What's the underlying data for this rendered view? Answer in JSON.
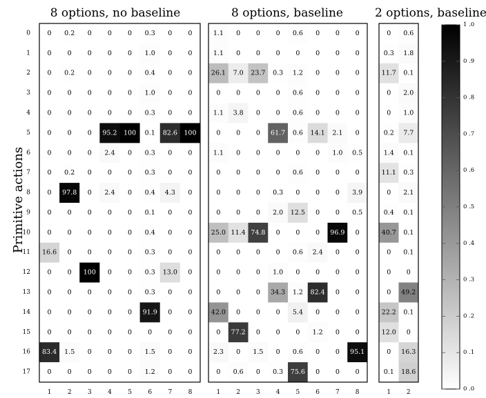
{
  "ylabel": "Primitive actions",
  "chart_data": [
    {
      "type": "heatmap",
      "title": "8 options, no baseline",
      "xticks": [
        "1",
        "2",
        "3",
        "4",
        "5",
        "6",
        "7",
        "8"
      ],
      "yticks": [
        "0",
        "1",
        "2",
        "3",
        "4",
        "5",
        "6",
        "7",
        "8",
        "9",
        "10",
        "11",
        "12",
        "13",
        "14",
        "15",
        "16",
        "17"
      ],
      "rows": [
        [
          "0",
          "0.2",
          "0",
          "0",
          "0",
          "0.3",
          "0",
          "0"
        ],
        [
          "0",
          "0",
          "0",
          "0",
          "0",
          "1.0",
          "0",
          "0"
        ],
        [
          "0",
          "0.2",
          "0",
          "0",
          "0",
          "0.4",
          "0",
          "0"
        ],
        [
          "0",
          "0",
          "0",
          "0",
          "0",
          "1.0",
          "0",
          "0"
        ],
        [
          "0",
          "0",
          "0",
          "0",
          "0",
          "0.3",
          "0",
          "0"
        ],
        [
          "0",
          "0",
          "0",
          "95.2",
          "100",
          "0.1",
          "82.6",
          "100"
        ],
        [
          "0",
          "0",
          "0",
          "2.4",
          "0",
          "0.3",
          "0",
          "0"
        ],
        [
          "0",
          "0.2",
          "0",
          "0",
          "0",
          "0.3",
          "0",
          "0"
        ],
        [
          "0",
          "97.8",
          "0",
          "2.4",
          "0",
          "0.4",
          "4.3",
          "0"
        ],
        [
          "0",
          "0",
          "0",
          "0",
          "0",
          "0.1",
          "0",
          "0"
        ],
        [
          "0",
          "0",
          "0",
          "0",
          "0",
          "0.4",
          "0",
          "0"
        ],
        [
          "16.6",
          "0",
          "0",
          "0",
          "0",
          "0.3",
          "0",
          "0"
        ],
        [
          "0",
          "0",
          "100",
          "0",
          "0",
          "0.3",
          "13.0",
          "0"
        ],
        [
          "0",
          "0",
          "0",
          "0",
          "0",
          "0.3",
          "0",
          "0"
        ],
        [
          "0",
          "0",
          "0",
          "0",
          "0",
          "91.9",
          "0",
          "0"
        ],
        [
          "0",
          "0",
          "0",
          "0",
          "0",
          "0",
          "0",
          "0"
        ],
        [
          "83.4",
          "1.5",
          "0",
          "0",
          "0",
          "1.5",
          "0",
          "0"
        ],
        [
          "0",
          "0",
          "0",
          "0",
          "0",
          "1.2",
          "0",
          "0"
        ]
      ]
    },
    {
      "type": "heatmap",
      "title": "8 options, baseline",
      "xticks": [
        "1",
        "2",
        "3",
        "4",
        "5",
        "6",
        "7",
        "8"
      ],
      "yticks": [],
      "rows": [
        [
          "1.1",
          "0",
          "0",
          "0",
          "0.6",
          "0",
          "0",
          "0"
        ],
        [
          "1.1",
          "0",
          "0",
          "0",
          "0",
          "0",
          "0",
          "0"
        ],
        [
          "26.1",
          "7.0",
          "23.7",
          "0.3",
          "1.2",
          "0",
          "0",
          "0"
        ],
        [
          "0",
          "0",
          "0",
          "0",
          "0.6",
          "0",
          "0",
          "0"
        ],
        [
          "1.1",
          "3.8",
          "0",
          "0",
          "0.6",
          "0",
          "0",
          "0"
        ],
        [
          "0",
          "0",
          "0",
          "61.7",
          "0.6",
          "14.1",
          "2.1",
          "0"
        ],
        [
          "1.1",
          "0",
          "0",
          "0",
          "0",
          "0",
          "1.0",
          "0.5"
        ],
        [
          "0",
          "0",
          "0",
          "0",
          "0.6",
          "0",
          "0",
          "0"
        ],
        [
          "0",
          "0",
          "0",
          "0.3",
          "0",
          "0",
          "0",
          "3.9"
        ],
        [
          "0",
          "0",
          "0",
          "2.0",
          "12.5",
          "0",
          "0",
          "0.5"
        ],
        [
          "25.0",
          "11.4",
          "74.8",
          "0",
          "0",
          "0",
          "96.9",
          "0"
        ],
        [
          "0",
          "0",
          "0",
          "0",
          "0.6",
          "2.4",
          "0",
          "0"
        ],
        [
          "0",
          "0",
          "0",
          "1.0",
          "0",
          "0",
          "0",
          "0"
        ],
        [
          "0",
          "0",
          "0",
          "34.3",
          "1.2",
          "82.4",
          "0",
          "0"
        ],
        [
          "42.0",
          "0",
          "0",
          "0",
          "5.4",
          "0",
          "0",
          "0"
        ],
        [
          "0",
          "77.2",
          "0",
          "0",
          "0",
          "1.2",
          "0",
          "0"
        ],
        [
          "2.3",
          "0",
          "1.5",
          "0",
          "0.6",
          "0",
          "0",
          "95.1"
        ],
        [
          "0",
          "0.6",
          "0",
          "0.3",
          "75.6",
          "0",
          "0",
          "0"
        ]
      ]
    },
    {
      "type": "heatmap",
      "title": "2 options, baseline",
      "xticks": [
        "1",
        "2"
      ],
      "yticks": [],
      "rows": [
        [
          "0",
          "0.6"
        ],
        [
          "0.3",
          "1.8"
        ],
        [
          "11.7",
          "0.1"
        ],
        [
          "0",
          "2.0"
        ],
        [
          "0",
          "1.0"
        ],
        [
          "0.2",
          "7.7"
        ],
        [
          "1.4",
          "0.1"
        ],
        [
          "11.1",
          "0.3"
        ],
        [
          "0",
          "2.1"
        ],
        [
          "0.4",
          "0.1"
        ],
        [
          "40.7",
          "0.1"
        ],
        [
          "0",
          "0.1"
        ],
        [
          "0",
          "0"
        ],
        [
          "0",
          "49.2"
        ],
        [
          "22.2",
          "0.1"
        ],
        [
          "12.0",
          "0"
        ],
        [
          "0",
          "16.3"
        ],
        [
          "0.1",
          "18.6"
        ]
      ]
    }
  ],
  "colorbar": {
    "ticks": [
      "1 .0",
      "0 .9",
      "0 .8",
      "0 .7",
      "0 .6",
      "0 .5",
      "0 .4",
      "0 .3",
      "0 .2",
      "0 .1",
      "0 .0"
    ],
    "range": [
      0,
      1
    ]
  }
}
